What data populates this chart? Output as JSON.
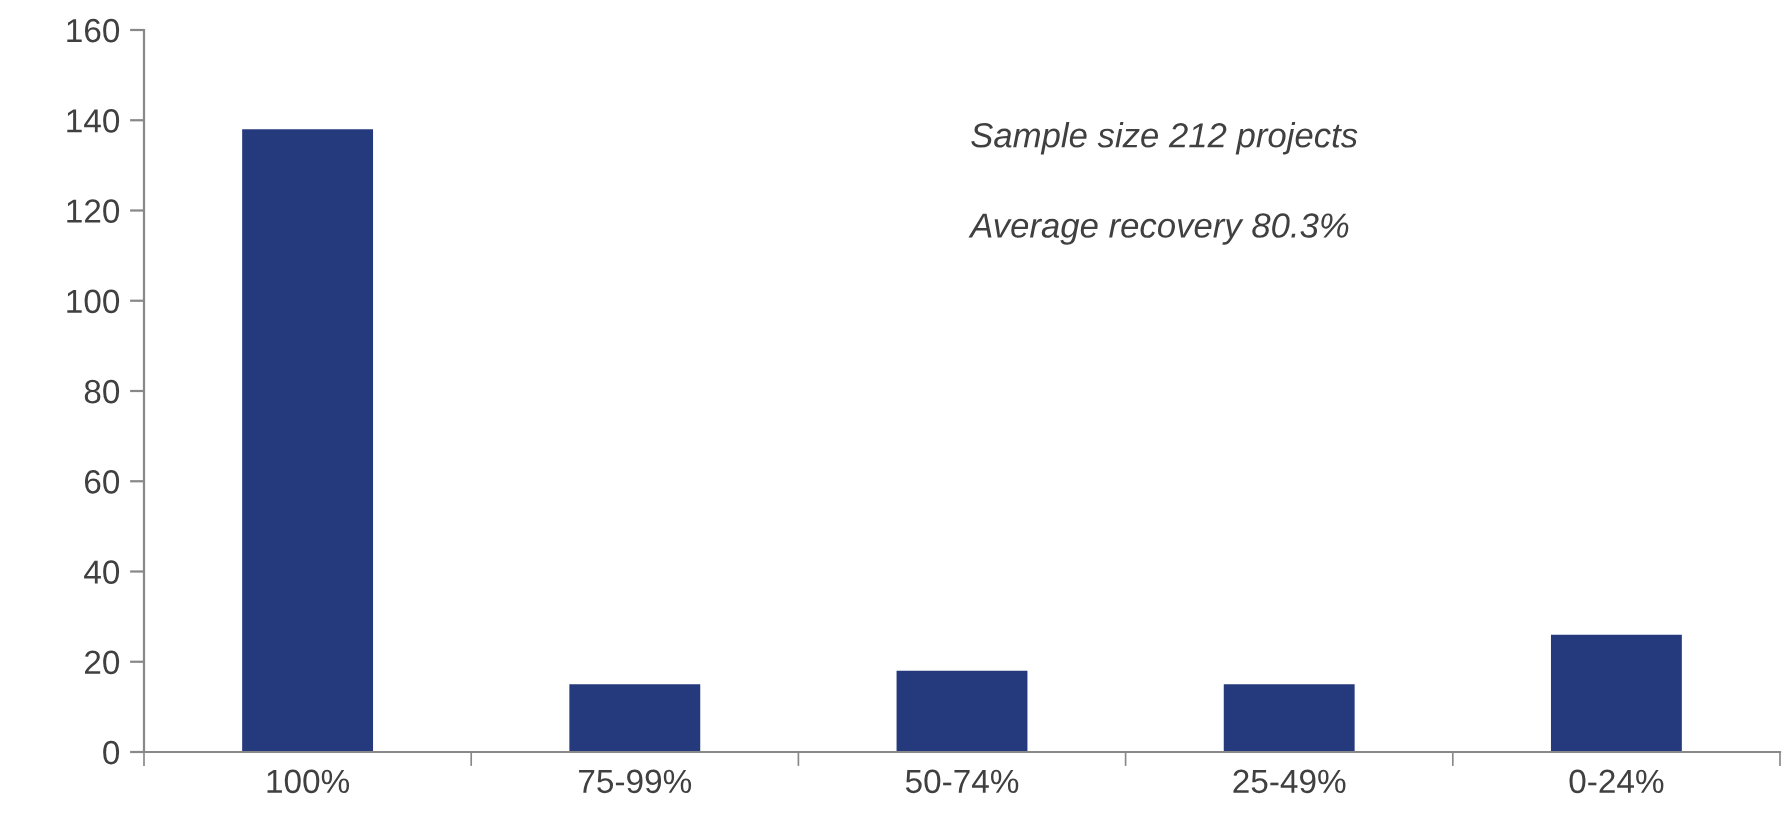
{
  "chart_data": {
    "type": "bar",
    "categories": [
      "100%",
      "75-99%",
      "50-74%",
      "25-49%",
      "0-24%"
    ],
    "values": [
      138,
      15,
      18,
      15,
      26
    ],
    "color": "#253a7d",
    "ylim": [
      0,
      160
    ],
    "yticks": [
      0,
      20,
      40,
      60,
      80,
      100,
      120,
      140,
      160
    ],
    "annotations": [
      "Sample size 212 projects",
      "Average recovery 80.3%"
    ],
    "grid": false,
    "legend": false
  }
}
